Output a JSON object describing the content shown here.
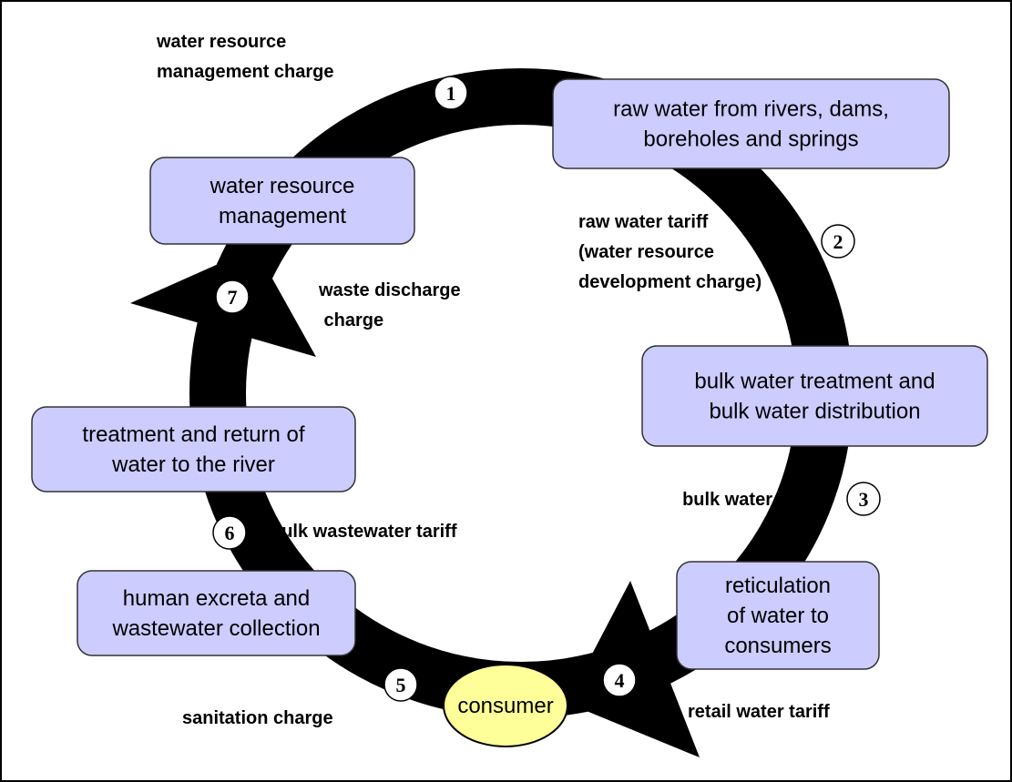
{
  "nodes": [
    {
      "lines": [
        "raw water from rivers, dams,",
        "boreholes and springs"
      ]
    },
    {
      "lines": [
        "water resource",
        "management"
      ]
    },
    {
      "lines": [
        "bulk water treatment and",
        "bulk water distribution"
      ]
    },
    {
      "lines": [
        "treatment and return of",
        "water to the river"
      ]
    },
    {
      "lines": [
        "reticulation",
        "of water to",
        "consumers"
      ]
    },
    {
      "lines": [
        "human excreta and",
        "wastewater collection"
      ]
    }
  ],
  "consumer": "consumer",
  "steps": [
    {
      "number": 1,
      "charge": [
        "water resource",
        "management charge"
      ]
    },
    {
      "number": 2,
      "charge": [
        "raw water tariff",
        "(water resource",
        "development charge)"
      ]
    },
    {
      "number": 3,
      "charge": [
        "bulk water tariff"
      ]
    },
    {
      "number": 4,
      "charge": [
        "retail water tariff"
      ]
    },
    {
      "number": 5,
      "charge": [
        "sanitation charge"
      ]
    },
    {
      "number": 6,
      "charge": [
        "bulk wastewater tariff"
      ]
    },
    {
      "number": 7,
      "charge": [
        "waste discharge",
        " charge"
      ]
    }
  ]
}
